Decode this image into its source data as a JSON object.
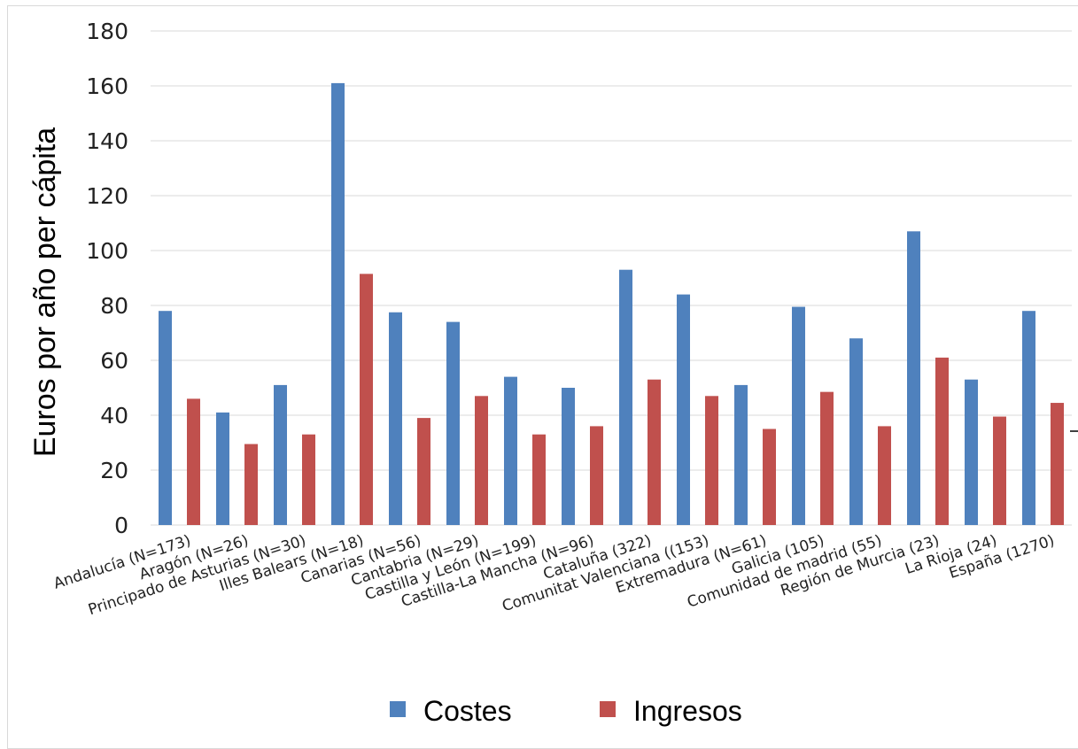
{
  "chart_data": {
    "type": "bar",
    "ylabel": "Euros por año per cápita",
    "xlabel": "",
    "ylim": [
      0,
      180
    ],
    "yticks": [
      0,
      20,
      40,
      60,
      80,
      100,
      120,
      140,
      160,
      180
    ],
    "grid": true,
    "legend_position": "bottom",
    "categories": [
      "Andalucía (N=173)",
      "Aragón (N=26)",
      "Principado de Asturias (N=30)",
      "Illes Balears (N=18)",
      "Canarias (N=56)",
      "Cantabria (N=29)",
      "Castilla y León (N=199)",
      "Castilla-La Mancha (N=96)",
      "Cataluña (322)",
      "Comunitat Valenciana ((153)",
      "Extremadura (N=61)",
      "Galicia (105)",
      "Comunidad de madrid (55)",
      "Región de Murcia (23)",
      "La Rioja (24)",
      "España (1270)"
    ],
    "series": [
      {
        "name": "Costes",
        "color": "#4f81bd",
        "values": [
          78,
          41,
          51,
          161,
          77.5,
          74,
          54,
          50,
          93,
          84,
          51,
          79.5,
          68,
          107,
          53,
          78
        ]
      },
      {
        "name": "Ingresos",
        "color": "#c0504d",
        "values": [
          46,
          29.5,
          33,
          91.5,
          39,
          47,
          33,
          36,
          53,
          47,
          35,
          48.5,
          36,
          61,
          39.5,
          44.5
        ]
      }
    ]
  }
}
